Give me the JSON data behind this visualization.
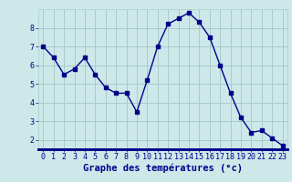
{
  "x": [
    0,
    1,
    2,
    3,
    4,
    5,
    6,
    7,
    8,
    9,
    10,
    11,
    12,
    13,
    14,
    15,
    16,
    17,
    18,
    19,
    20,
    21,
    22,
    23
  ],
  "y": [
    7.0,
    6.4,
    5.5,
    5.8,
    6.4,
    5.5,
    4.8,
    4.5,
    4.5,
    3.5,
    5.2,
    7.0,
    8.2,
    8.5,
    8.8,
    8.3,
    7.5,
    6.0,
    4.5,
    3.2,
    2.4,
    2.5,
    2.1,
    1.7
  ],
  "xlabel": "Graphe des températures (°c)",
  "ylim": [
    1.5,
    9.0
  ],
  "xlim": [
    -0.5,
    23.5
  ],
  "yticks": [
    2,
    3,
    4,
    5,
    6,
    7,
    8
  ],
  "xticks": [
    0,
    1,
    2,
    3,
    4,
    5,
    6,
    7,
    8,
    9,
    10,
    11,
    12,
    13,
    14,
    15,
    16,
    17,
    18,
    19,
    20,
    21,
    22,
    23
  ],
  "line_color": "#00008B",
  "marker": "s",
  "marker_size": 2.5,
  "bg_color": "#cce8e8",
  "grid_color": "#aacccc",
  "axis_label_color": "#00008B",
  "tick_color": "#00008B",
  "xlabel_fontsize": 7.5,
  "tick_fontsize": 6.0,
  "linewidth": 1.0
}
